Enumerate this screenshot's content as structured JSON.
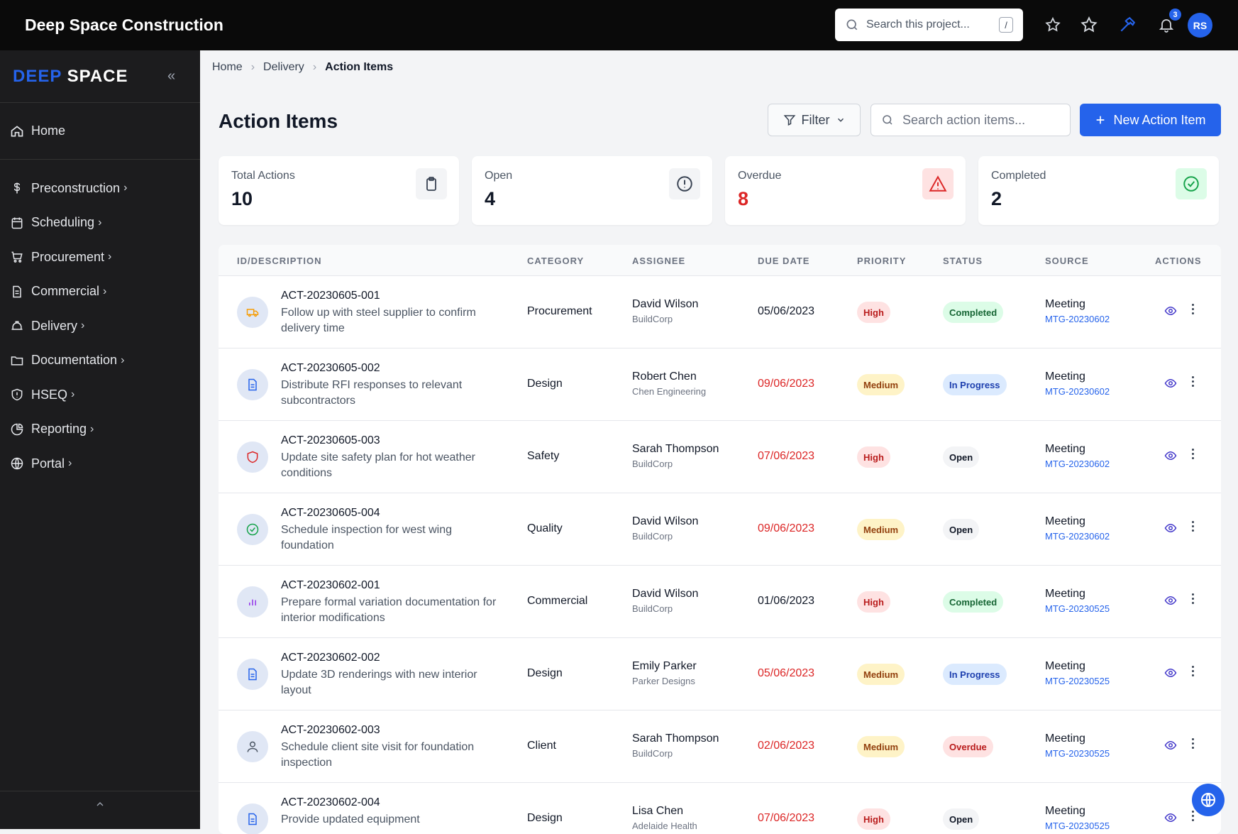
{
  "header": {
    "brand": "Deep Space Construction",
    "search_placeholder": "Search this project...",
    "search_shortcut": "/",
    "notification_count": "3",
    "avatar_initials": "RS"
  },
  "sidebar": {
    "logo_part1": "DEEP",
    "logo_part2": "SPACE",
    "home_label": "Home",
    "items": [
      {
        "label": "Preconstruction",
        "icon": "dollar-icon"
      },
      {
        "label": "Scheduling",
        "icon": "calendar-icon"
      },
      {
        "label": "Procurement",
        "icon": "cart-icon"
      },
      {
        "label": "Commercial",
        "icon": "document-icon"
      },
      {
        "label": "Delivery",
        "icon": "hardhat-icon"
      },
      {
        "label": "Documentation",
        "icon": "folder-icon"
      },
      {
        "label": "HSEQ",
        "icon": "shield-icon"
      },
      {
        "label": "Reporting",
        "icon": "piechart-icon"
      },
      {
        "label": "Portal",
        "icon": "globe-icon"
      }
    ]
  },
  "breadcrumb": [
    "Home",
    "Delivery",
    "Action Items"
  ],
  "page": {
    "title": "Action Items",
    "filter_label": "Filter",
    "search_placeholder": "Search action items...",
    "new_button": "New Action Item"
  },
  "stats": [
    {
      "label": "Total Actions",
      "value": "10",
      "icon": "clipboard-icon"
    },
    {
      "label": "Open",
      "value": "4",
      "icon": "alert-circle-icon"
    },
    {
      "label": "Overdue",
      "value": "8",
      "icon": "warning-triangle-icon"
    },
    {
      "label": "Completed",
      "value": "2",
      "icon": "check-circle-icon"
    }
  ],
  "table": {
    "headers": [
      "ID/DESCRIPTION",
      "CATEGORY",
      "ASSIGNEE",
      "DUE DATE",
      "PRIORITY",
      "STATUS",
      "SOURCE",
      "ACTIONS"
    ],
    "rows": [
      {
        "id": "ACT-20230605-001",
        "desc": "Follow up with steel supplier to confirm delivery time",
        "category": "Procurement",
        "assignee": "David Wilson",
        "org": "BuildCorp",
        "due": "05/06/2023",
        "overdue": false,
        "priority": "High",
        "status": "Completed",
        "source": "Meeting",
        "ref": "MTG-20230602",
        "icon": "truck-icon"
      },
      {
        "id": "ACT-20230605-002",
        "desc": "Distribute RFI responses to relevant subcontractors",
        "category": "Design",
        "assignee": "Robert Chen",
        "org": "Chen Engineering",
        "due": "09/06/2023",
        "overdue": true,
        "priority": "Medium",
        "status": "In Progress",
        "source": "Meeting",
        "ref": "MTG-20230602",
        "icon": "file-icon"
      },
      {
        "id": "ACT-20230605-003",
        "desc": "Update site safety plan for hot weather conditions",
        "category": "Safety",
        "assignee": "Sarah Thompson",
        "org": "BuildCorp",
        "due": "07/06/2023",
        "overdue": true,
        "priority": "High",
        "status": "Open",
        "source": "Meeting",
        "ref": "MTG-20230602",
        "icon": "shield-icon"
      },
      {
        "id": "ACT-20230605-004",
        "desc": "Schedule inspection for west wing foundation",
        "category": "Quality",
        "assignee": "David Wilson",
        "org": "BuildCorp",
        "due": "09/06/2023",
        "overdue": true,
        "priority": "Medium",
        "status": "Open",
        "source": "Meeting",
        "ref": "MTG-20230602",
        "icon": "check-circle-icon"
      },
      {
        "id": "ACT-20230602-001",
        "desc": "Prepare formal variation documentation for interior modifications",
        "category": "Commercial",
        "assignee": "David Wilson",
        "org": "BuildCorp",
        "due": "01/06/2023",
        "overdue": false,
        "priority": "High",
        "status": "Completed",
        "source": "Meeting",
        "ref": "MTG-20230525",
        "icon": "bar-chart-icon"
      },
      {
        "id": "ACT-20230602-002",
        "desc": "Update 3D renderings with new interior layout",
        "category": "Design",
        "assignee": "Emily Parker",
        "org": "Parker Designs",
        "due": "05/06/2023",
        "overdue": true,
        "priority": "Medium",
        "status": "In Progress",
        "source": "Meeting",
        "ref": "MTG-20230525",
        "icon": "file-icon"
      },
      {
        "id": "ACT-20230602-003",
        "desc": "Schedule client site visit for foundation inspection",
        "category": "Client",
        "assignee": "Sarah Thompson",
        "org": "BuildCorp",
        "due": "02/06/2023",
        "overdue": true,
        "priority": "Medium",
        "status": "Overdue",
        "source": "Meeting",
        "ref": "MTG-20230525",
        "icon": "user-icon"
      },
      {
        "id": "ACT-20230602-004",
        "desc": "Provide updated equipment",
        "category": "Design",
        "assignee": "Lisa Chen",
        "org": "Adelaide Health",
        "due": "07/06/2023",
        "overdue": true,
        "priority": "High",
        "status": "Open",
        "source": "Meeting",
        "ref": "MTG-20230525",
        "icon": "file-icon"
      }
    ]
  },
  "colors": {
    "accent": "#2563eb",
    "overdue": "#dc2626",
    "topbar": "#0a0a0a",
    "sidebar": "#1c1c1e"
  }
}
